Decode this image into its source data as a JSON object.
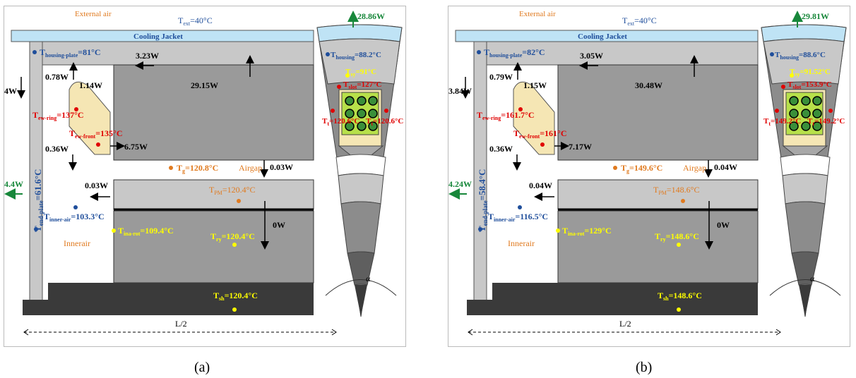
{
  "panels": [
    {
      "id": "a",
      "caption": "(a)",
      "labels": {
        "external_air": "External air",
        "t_ext": "T",
        "t_ext_sub": "ext",
        "t_ext_val": "=40°C",
        "cooling_jacket": "Cooling Jacket",
        "t_housing_plate": "T",
        "t_housing_plate_sub": "housing-plate",
        "t_housing_plate_val": "=81°C",
        "flux_top_left": "3.23W",
        "flux_jacket": "29.15W",
        "flux_endplate": "4W",
        "flux_ew_top": "0.78W",
        "flux_ew_right": "1.14W",
        "t_ew_ring": "T",
        "t_ew_ring_sub": "ew-ring",
        "t_ew_ring_val": "=137°C",
        "t_ew_front": "T",
        "t_ew_front_sub": "ew-front",
        "t_ew_front_val": "=135°C",
        "flux_ew_bottom": "0.36W",
        "flux_ew_out": "6.75W",
        "t_end_plate": "T",
        "t_end_plate_sub": "end-plate",
        "t_end_plate_val": "=61.6°C",
        "flux_out_left": "4.4W",
        "t_g": "T",
        "t_g_sub": "g",
        "t_g_val": "=120.8°C",
        "airgap": "Airgap",
        "flux_airgap": "0.03W",
        "flux_rotor_left": "0.03W",
        "t_pm": "T",
        "t_pm_sub": "PM",
        "t_pm_val": "=120.4°C",
        "t_inner_air": "T",
        "t_inner_air_sub": "inner-air",
        "t_inner_air_val": "=103.3°C",
        "t_ina_rot": "T",
        "t_ina_rot_sub": "ina-rot",
        "t_ina_rot_val": "=109.4°C",
        "flux_rotor": "0W",
        "inner_air": "Innerair",
        "t_ry": "T",
        "t_ry_sub": "ry",
        "t_ry_val": "=120.4°C",
        "t_sh": "T",
        "t_sh_sub": "sh",
        "t_sh_val": "=120.4°C",
        "length": "L/2",
        "flux_radial": "28.86W",
        "t_housing": "T",
        "t_housing_sub": "housing",
        "t_housing_val": "=88.2°C",
        "t_sy": "T",
        "t_sy_sub": "sy",
        "t_sy_val": "=91°C",
        "t_slot": "T",
        "t_slot_sub": "slot",
        "t_slot_val": "=127°C",
        "t_t_left": "T",
        "t_t_left_sub": "t",
        "t_t_left_val": "=120.6°C",
        "t_t_right": "T",
        "t_t_right_sub": "t",
        "t_t_right_val": "=120.6°C",
        "alpha": "α"
      }
    },
    {
      "id": "b",
      "caption": "(b)",
      "labels": {
        "external_air": "External air",
        "t_ext": "T",
        "t_ext_sub": "ext",
        "t_ext_val": "=40°C",
        "cooling_jacket": "Cooling Jacket",
        "t_housing_plate": "T",
        "t_housing_plate_sub": "housing-plate",
        "t_housing_plate_val": "=82°C",
        "flux_top_left": "3.05W",
        "flux_jacket": "30.48W",
        "flux_endplate": "3.84W",
        "flux_ew_top": "0.79W",
        "flux_ew_right": "1.15W",
        "t_ew_ring": "T",
        "t_ew_ring_sub": "ew-ring",
        "t_ew_ring_val": "=161.7°C",
        "t_ew_front": "T",
        "t_ew_front_sub": "ew-front",
        "t_ew_front_val": "=161°C",
        "flux_ew_bottom": "0.36W",
        "flux_ew_out": "7.17W",
        "t_end_plate": "T",
        "t_end_plate_sub": "end-plate",
        "t_end_plate_val": "=58.4°C",
        "flux_out_left": "4.24W",
        "t_g": "T",
        "t_g_sub": "g",
        "t_g_val": "=149.6°C",
        "airgap": "Airgap",
        "flux_airgap": "0.04W",
        "flux_rotor_left": "0.04W",
        "t_pm": "T",
        "t_pm_sub": "PM",
        "t_pm_val": "=148.6°C",
        "t_inner_air": "T",
        "t_inner_air_sub": "inner-air",
        "t_inner_air_val": "=116.5°C",
        "t_ina_rot": "T",
        "t_ina_rot_sub": "ina-rot",
        "t_ina_rot_val": "=129°C",
        "flux_rotor": "0W",
        "inner_air": "Innerair",
        "t_ry": "T",
        "t_ry_sub": "ry",
        "t_ry_val": "=148.6°C",
        "t_sh": "T",
        "t_sh_sub": "sh",
        "t_sh_val": "=148.6°C",
        "length": "L/2",
        "flux_radial": "29.81W",
        "t_housing": "T",
        "t_housing_sub": "housing",
        "t_housing_val": "=88.6°C",
        "t_sy": "T",
        "t_sy_sub": "sy",
        "t_sy_val": "=91.52°C",
        "t_slot": "T",
        "t_slot_sub": "slot",
        "t_slot_val": "=153.9°C",
        "t_t_left": "T",
        "t_t_left_sub": "t",
        "t_t_left_val": "=149.2°C",
        "t_t_right": "T",
        "t_t_right_sub": "t",
        "t_t_right_val": "=149.2°C",
        "alpha": "α"
      }
    }
  ],
  "colors": {
    "temperature_blue": "#1f4e9b",
    "temperature_red": "#e00000",
    "temperature_orange": "#e07a1f",
    "temperature_yellow": "#ffff00",
    "flux_green": "#17873a",
    "cooling_jacket": "#bfe3f5",
    "housing": "#c8c8c8",
    "core": "#9a9a9a",
    "shaft": "#3a3a3a",
    "winding": "#f5e6b4"
  }
}
